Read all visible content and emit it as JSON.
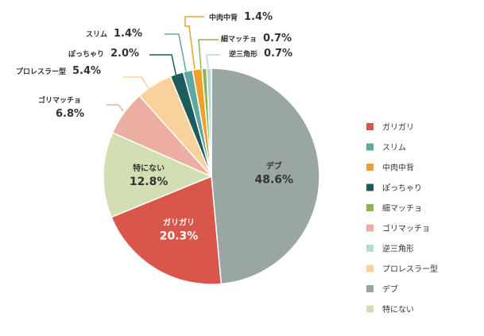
{
  "chart_data": {
    "type": "pie",
    "categories": [
      "デブ",
      "ガリガリ",
      "特にない",
      "ゴリマッチョ",
      "プロレスラー型",
      "ぽっちゃり",
      "スリム",
      "中肉中背",
      "細マッチョ",
      "逆三角形"
    ],
    "values": [
      48.6,
      20.3,
      12.8,
      6.8,
      5.4,
      2.0,
      1.4,
      1.4,
      0.7,
      0.7
    ],
    "value_labels": [
      "48.6%",
      "20.3%",
      "12.8%",
      "6.8%",
      "5.4%",
      "2.0%",
      "1.4%",
      "1.4%",
      "0.7%",
      "0.7%"
    ],
    "colors": [
      "#9aa6a4",
      "#d9574a",
      "#d3dfb3",
      "#ecaea2",
      "#f8d29a",
      "#1d5b5c",
      "#5fa8a2",
      "#eda12b",
      "#8cb454",
      "#b7d8d3"
    ],
    "legend": {
      "placement": "right",
      "items": [
        "ガリガリ",
        "スリム",
        "中肉中背",
        "ぽっちゃり",
        "細マッチョ",
        "ゴリマッチョ",
        "逆三角形",
        "プロレスラー型",
        "デブ",
        "特にない"
      ]
    }
  }
}
